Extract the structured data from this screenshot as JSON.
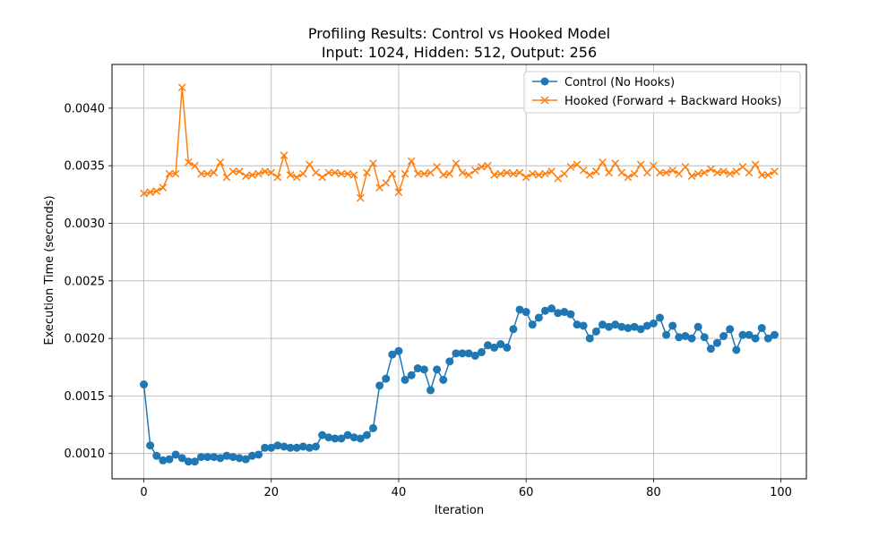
{
  "chart_data": {
    "type": "line",
    "title": "Profiling Results: Control vs Hooked Model",
    "subtitle": "Input: 1024, Hidden: 512, Output: 256",
    "xlabel": "Iteration",
    "ylabel": "Execution Time (seconds)",
    "xlim": [
      -5,
      104
    ],
    "ylim": [
      0.00078,
      0.00438
    ],
    "xticks": [
      0,
      20,
      40,
      60,
      80,
      100
    ],
    "xtick_labels": [
      "0",
      "20",
      "40",
      "60",
      "80",
      "100"
    ],
    "yticks": [
      0.001,
      0.0015,
      0.002,
      0.0025,
      0.003,
      0.0035,
      0.004
    ],
    "ytick_labels": [
      "0.0010",
      "0.0015",
      "0.0020",
      "0.0025",
      "0.0030",
      "0.0035",
      "0.0040"
    ],
    "grid": true,
    "legend_position": "top-right",
    "x": [
      0,
      1,
      2,
      3,
      4,
      5,
      6,
      7,
      8,
      9,
      10,
      11,
      12,
      13,
      14,
      15,
      16,
      17,
      18,
      19,
      20,
      21,
      22,
      23,
      24,
      25,
      26,
      27,
      28,
      29,
      30,
      31,
      32,
      33,
      34,
      35,
      36,
      37,
      38,
      39,
      40,
      41,
      42,
      43,
      44,
      45,
      46,
      47,
      48,
      49,
      50,
      51,
      52,
      53,
      54,
      55,
      56,
      57,
      58,
      59,
      60,
      61,
      62,
      63,
      64,
      65,
      66,
      67,
      68,
      69,
      70,
      71,
      72,
      73,
      74,
      75,
      76,
      77,
      78,
      79,
      80,
      81,
      82,
      83,
      84,
      85,
      86,
      87,
      88,
      89,
      90,
      91,
      92,
      93,
      94,
      95,
      96,
      97,
      98,
      99
    ],
    "series": [
      {
        "name": "Control (No Hooks)",
        "color": "#1f77b4",
        "marker": "circle",
        "values": [
          0.0016,
          0.00107,
          0.00098,
          0.00094,
          0.00095,
          0.00099,
          0.00096,
          0.00093,
          0.00093,
          0.00097,
          0.00097,
          0.00097,
          0.00096,
          0.00098,
          0.00097,
          0.00096,
          0.00095,
          0.00098,
          0.00099,
          0.00105,
          0.00105,
          0.00107,
          0.00106,
          0.00105,
          0.00105,
          0.00106,
          0.00105,
          0.00106,
          0.00116,
          0.00114,
          0.00113,
          0.00113,
          0.00116,
          0.00114,
          0.00113,
          0.00116,
          0.00122,
          0.00159,
          0.00165,
          0.00186,
          0.00189,
          0.00164,
          0.00168,
          0.00174,
          0.00173,
          0.00155,
          0.00173,
          0.00164,
          0.0018,
          0.00187,
          0.00187,
          0.00187,
          0.00185,
          0.00188,
          0.00194,
          0.00192,
          0.00195,
          0.00192,
          0.00208,
          0.00225,
          0.00223,
          0.00212,
          0.00218,
          0.00224,
          0.00226,
          0.00222,
          0.00223,
          0.00221,
          0.00212,
          0.00211,
          0.002,
          0.00206,
          0.00212,
          0.0021,
          0.00212,
          0.0021,
          0.00209,
          0.0021,
          0.00208,
          0.00211,
          0.00213,
          0.00218,
          0.00203,
          0.00211,
          0.00201,
          0.00202,
          0.002,
          0.0021,
          0.00201,
          0.00191,
          0.00196,
          0.00202,
          0.00208,
          0.0019,
          0.00203,
          0.00203,
          0.002,
          0.00209,
          0.002,
          0.00203
        ]
      },
      {
        "name": "Hooked (Forward + Backward Hooks)",
        "color": "#ff7f0e",
        "marker": "x",
        "values": [
          0.00326,
          0.00327,
          0.00328,
          0.00331,
          0.00343,
          0.00343,
          0.00418,
          0.00353,
          0.0035,
          0.00343,
          0.00343,
          0.00344,
          0.00353,
          0.0034,
          0.00345,
          0.00345,
          0.00341,
          0.00342,
          0.00343,
          0.00345,
          0.00344,
          0.0034,
          0.00359,
          0.00342,
          0.0034,
          0.00343,
          0.00351,
          0.00344,
          0.0034,
          0.00344,
          0.00344,
          0.00343,
          0.00343,
          0.00342,
          0.00322,
          0.00344,
          0.00352,
          0.00331,
          0.00335,
          0.00343,
          0.00327,
          0.00343,
          0.00354,
          0.00343,
          0.00343,
          0.00344,
          0.00349,
          0.00342,
          0.00343,
          0.00352,
          0.00344,
          0.00342,
          0.00346,
          0.00349,
          0.0035,
          0.00342,
          0.00343,
          0.00344,
          0.00343,
          0.00344,
          0.0034,
          0.00343,
          0.00342,
          0.00343,
          0.00345,
          0.00339,
          0.00343,
          0.00349,
          0.00351,
          0.00346,
          0.00342,
          0.00345,
          0.00353,
          0.00344,
          0.00352,
          0.00344,
          0.0034,
          0.00343,
          0.00351,
          0.00344,
          0.0035,
          0.00344,
          0.00344,
          0.00346,
          0.00343,
          0.00349,
          0.00341,
          0.00343,
          0.00344,
          0.00347,
          0.00344,
          0.00345,
          0.00343,
          0.00345,
          0.00349,
          0.00344,
          0.00351,
          0.00342,
          0.00342,
          0.00345
        ]
      }
    ]
  }
}
